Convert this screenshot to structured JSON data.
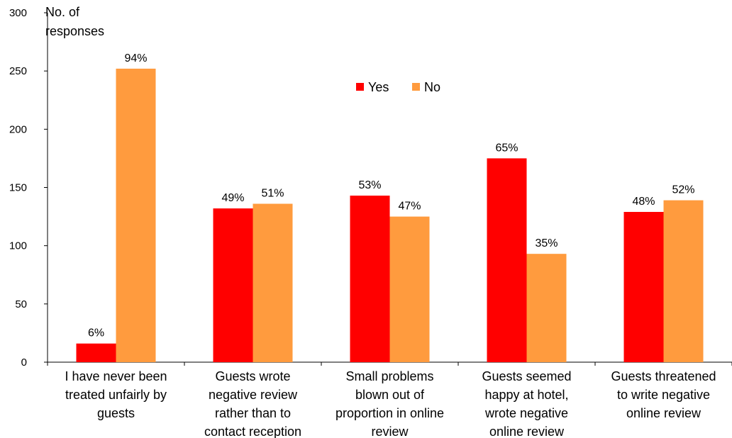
{
  "chart_data": {
    "type": "bar",
    "title": "",
    "ylabel": "No. of responses",
    "xlabel": "",
    "ylim": [
      0,
      300
    ],
    "yticks": [
      0,
      50,
      100,
      150,
      200,
      250,
      300
    ],
    "grid": false,
    "legend_position": "top-center",
    "categories": [
      [
        "I have never been",
        "treated unfairly by",
        "guests"
      ],
      [
        "Guests wrote",
        "negative review",
        "rather than to",
        "contact reception"
      ],
      [
        "Small problems",
        "blown out of",
        "proportion in online",
        "review"
      ],
      [
        "Guests seemed",
        "happy at hotel,",
        "wrote negative",
        "online review"
      ],
      [
        "Guests threatened",
        "to write negative",
        "online review"
      ]
    ],
    "series": [
      {
        "name": "Yes",
        "color": "#ff0000",
        "values": [
          16,
          132,
          143,
          175,
          129
        ],
        "labels": [
          "6%",
          "49%",
          "53%",
          "65%",
          "48%"
        ]
      },
      {
        "name": "No",
        "color": "#ff9b3e",
        "values": [
          252,
          136,
          125,
          93,
          139
        ],
        "labels": [
          "94%",
          "51%",
          "47%",
          "35%",
          "52%"
        ]
      }
    ]
  }
}
